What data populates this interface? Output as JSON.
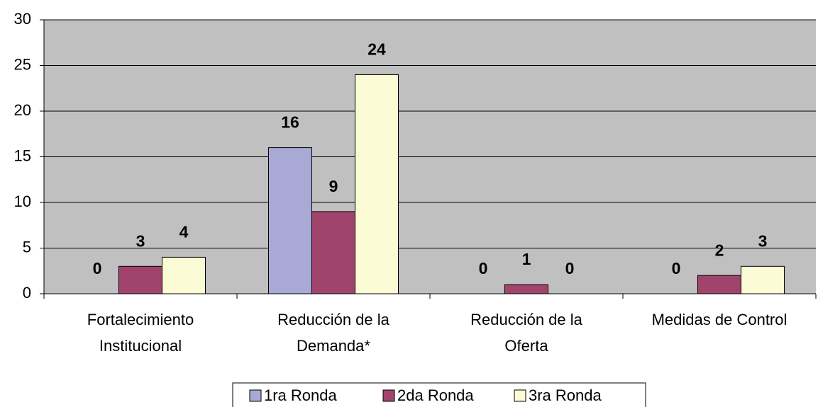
{
  "chart_data": {
    "type": "bar",
    "categories": [
      "Fortalecimiento\nInstitucional",
      "Reducción de la\nDemanda*",
      "Reducción de la\nOferta",
      "Medidas de Control"
    ],
    "series": [
      {
        "name": "1ra Ronda",
        "color": "#a9a9d6",
        "values": [
          0,
          16,
          0,
          0
        ]
      },
      {
        "name": "2da Ronda",
        "color": "#a0446e",
        "values": [
          3,
          9,
          1,
          2
        ]
      },
      {
        "name": "3ra Ronda",
        "color": "#fbfbd6",
        "values": [
          4,
          24,
          0,
          3
        ]
      }
    ],
    "ylim": [
      0,
      30
    ],
    "yticks": [
      0,
      5,
      10,
      15,
      20,
      25,
      30
    ],
    "grid": true,
    "legend": "bottom"
  }
}
